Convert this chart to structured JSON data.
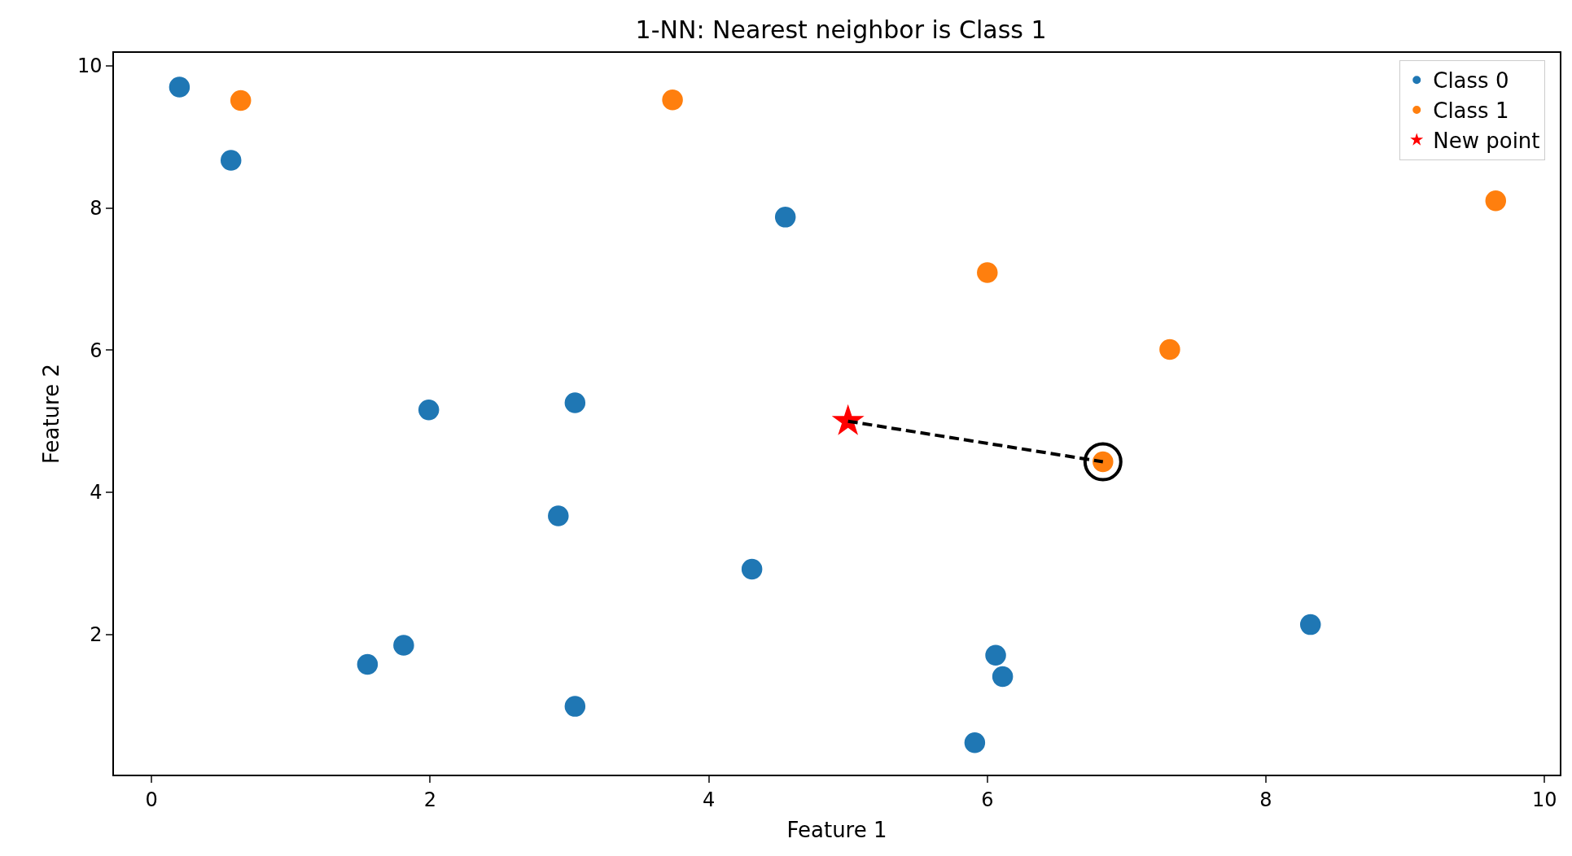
{
  "chart_data": {
    "type": "scatter",
    "title": "1-NN: Nearest neighbor is Class 1",
    "xlabel": "Feature 1",
    "ylabel": "Feature 2",
    "xlim": [
      -0.27,
      10.11
    ],
    "ylim": [
      0.03,
      10.18
    ],
    "xticks": [
      0,
      2,
      4,
      6,
      8,
      10
    ],
    "yticks": [
      2,
      4,
      6,
      8,
      10
    ],
    "legend": "top right",
    "series": [
      {
        "name": "Class 0",
        "color": "#1f77b4",
        "marker": "circle",
        "x": [
          0.2,
          0.57,
          4.55,
          1.99,
          3.04,
          2.92,
          4.31,
          1.81,
          1.55,
          3.04,
          6.06,
          6.11,
          5.91,
          8.32
        ],
        "values": [
          9.7,
          8.67,
          7.87,
          5.16,
          5.26,
          3.67,
          2.92,
          1.85,
          1.58,
          0.99,
          1.71,
          1.41,
          0.48,
          2.14
        ]
      },
      {
        "name": "Class 1",
        "color": "#ff7f0e",
        "marker": "circle",
        "x": [
          0.64,
          3.74,
          6.0,
          7.31,
          9.65,
          6.83
        ],
        "values": [
          9.51,
          9.52,
          7.09,
          6.01,
          8.1,
          4.43
        ]
      },
      {
        "type": "scatter",
        "color": "#000000",
        "marker": "circle",
        "x": [
          6.83
        ],
        "values": [
          4.43
        ]
      },
      {
        "name": "New point",
        "color": "#ff0000",
        "marker": "star",
        "x": [
          5.0
        ],
        "values": [
          5.0
        ]
      },
      {
        "type": "line",
        "color": "#000000",
        "line_style": "dashed",
        "marker": "none",
        "x": [
          5.0,
          6.83
        ],
        "values": [
          5.0,
          4.43
        ]
      }
    ]
  }
}
